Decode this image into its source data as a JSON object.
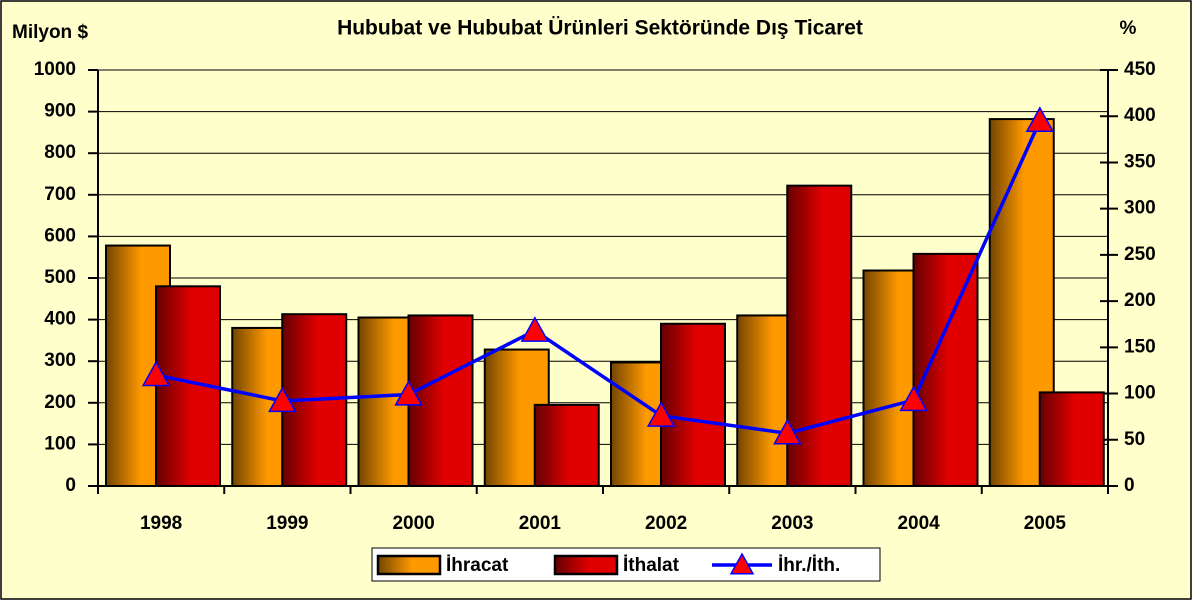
{
  "chart_data": {
    "type": "bar_line",
    "title": "Hububat ve Hububat Ürünleri Sektöründe Dış Ticaret",
    "ylabel": "Milyon $",
    "y2label": "%",
    "categories": [
      "1998",
      "1999",
      "2000",
      "2001",
      "2002",
      "2003",
      "2004",
      "2005"
    ],
    "series": [
      {
        "name": "İhracat",
        "color": "#ff9900",
        "values": [
          578,
          380,
          405,
          328,
          297,
          410,
          518,
          882
        ]
      },
      {
        "name": "İthalat",
        "color": "#e00000",
        "values": [
          480,
          413,
          410,
          195,
          390,
          722,
          558,
          225
        ]
      },
      {
        "name": "İhr./İth.",
        "color": "#0000ff",
        "marker_color": "#ff0000",
        "axis": "y2",
        "values": [
          120,
          92,
          99,
          168,
          76,
          57,
          93,
          395
        ]
      }
    ],
    "ylim": [
      0,
      1000
    ],
    "yticks": [
      0,
      100,
      200,
      300,
      400,
      500,
      600,
      700,
      800,
      900,
      1000
    ],
    "y2lim": [
      0,
      450
    ],
    "y2ticks": [
      0,
      50,
      100,
      150,
      200,
      250,
      300,
      350,
      400,
      450
    ],
    "grid": true
  }
}
